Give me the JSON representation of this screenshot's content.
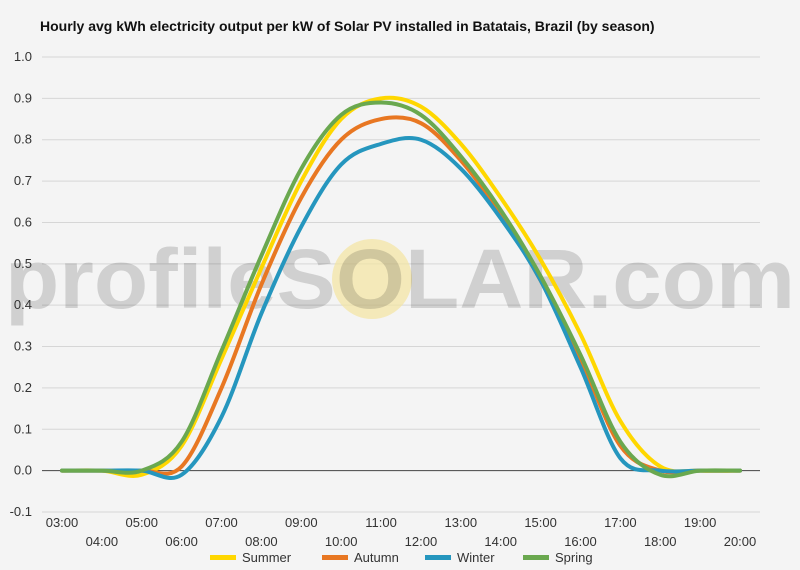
{
  "watermark": {
    "brand": "profileSOLAR.com"
  },
  "chart_data": {
    "type": "line",
    "title": "Hourly avg kWh electricity output per kW of Solar PV installed in Batatais, Brazil (by season)",
    "xlabel": "",
    "ylabel": "",
    "ylim": [
      -0.1,
      1.0
    ],
    "xlim": [
      3,
      20
    ],
    "grid": true,
    "legend": "bottom",
    "x_ticks": [
      "03:00",
      "04:00",
      "05:00",
      "06:00",
      "07:00",
      "08:00",
      "09:00",
      "10:00",
      "11:00",
      "12:00",
      "13:00",
      "14:00",
      "15:00",
      "16:00",
      "17:00",
      "18:00",
      "19:00",
      "20:00"
    ],
    "y_ticks": [
      "-0.1",
      "0.0",
      "0.1",
      "0.2",
      "0.3",
      "0.4",
      "0.5",
      "0.6",
      "0.7",
      "0.8",
      "0.9",
      "1.0"
    ],
    "x": [
      3,
      4,
      5,
      6,
      7,
      8,
      9,
      10,
      11,
      12,
      13,
      14,
      15,
      16,
      17,
      18,
      19,
      20
    ],
    "series": [
      {
        "name": "Summer",
        "color": "#ffd700",
        "values": [
          0,
          0,
          -0.01,
          0.06,
          0.27,
          0.49,
          0.7,
          0.85,
          0.9,
          0.88,
          0.79,
          0.66,
          0.51,
          0.33,
          0.12,
          0.01,
          0,
          0
        ]
      },
      {
        "name": "Autumn",
        "color": "#e87722",
        "values": [
          0,
          0,
          0,
          0.01,
          0.2,
          0.45,
          0.66,
          0.8,
          0.85,
          0.84,
          0.75,
          0.62,
          0.46,
          0.27,
          0.06,
          0,
          0,
          0
        ]
      },
      {
        "name": "Winter",
        "color": "#2596be",
        "values": [
          0,
          0,
          0,
          -0.01,
          0.13,
          0.38,
          0.59,
          0.74,
          0.79,
          0.8,
          0.73,
          0.61,
          0.46,
          0.25,
          0.03,
          0,
          0,
          0
        ]
      },
      {
        "name": "Spring",
        "color": "#6aa84f",
        "values": [
          0,
          0,
          0,
          0.07,
          0.29,
          0.52,
          0.73,
          0.86,
          0.89,
          0.86,
          0.76,
          0.63,
          0.47,
          0.28,
          0.07,
          -0.01,
          0,
          0
        ]
      }
    ]
  }
}
